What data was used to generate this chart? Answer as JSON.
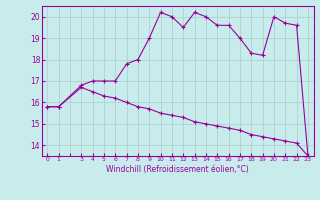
{
  "xlabel": "Windchill (Refroidissement éolien,°C)",
  "bg_color": "#c8ecec",
  "line_color": "#990099",
  "grid_color": "#aacccc",
  "ylim": [
    13.5,
    20.5
  ],
  "xlim": [
    -0.5,
    23.5
  ],
  "yticks": [
    14,
    15,
    16,
    17,
    18,
    19,
    20
  ],
  "xtick_labels": [
    "0",
    "1",
    "",
    "3",
    "4",
    "5",
    "6",
    "7",
    "8",
    "9",
    "10",
    "11",
    "12",
    "13",
    "14",
    "15",
    "16",
    "17",
    "18",
    "19",
    "20",
    "21",
    "22",
    "23"
  ],
  "xtick_pos": [
    0,
    1,
    2,
    3,
    4,
    5,
    6,
    7,
    8,
    9,
    10,
    11,
    12,
    13,
    14,
    15,
    16,
    17,
    18,
    19,
    20,
    21,
    22,
    23
  ],
  "series1_x": [
    0,
    1,
    3,
    4,
    5,
    6,
    7,
    8,
    9,
    10,
    11,
    12,
    13,
    14,
    15,
    16,
    17,
    18,
    19,
    20,
    21,
    22,
    23
  ],
  "series1_y": [
    15.8,
    15.8,
    16.8,
    17.0,
    17.0,
    17.0,
    17.8,
    18.0,
    19.0,
    20.2,
    20.0,
    19.5,
    20.2,
    20.0,
    19.6,
    19.6,
    19.0,
    18.3,
    18.2,
    20.0,
    19.7,
    19.6,
    13.5
  ],
  "series2_x": [
    0,
    1,
    3,
    4,
    5,
    6,
    7,
    8,
    9,
    10,
    11,
    12,
    13,
    14,
    15,
    16,
    17,
    18,
    19,
    20,
    21,
    22,
    23
  ],
  "series2_y": [
    15.8,
    15.8,
    16.7,
    16.5,
    16.3,
    16.2,
    16.0,
    15.8,
    15.7,
    15.5,
    15.4,
    15.3,
    15.1,
    15.0,
    14.9,
    14.8,
    14.7,
    14.5,
    14.4,
    14.3,
    14.2,
    14.1,
    13.5
  ]
}
